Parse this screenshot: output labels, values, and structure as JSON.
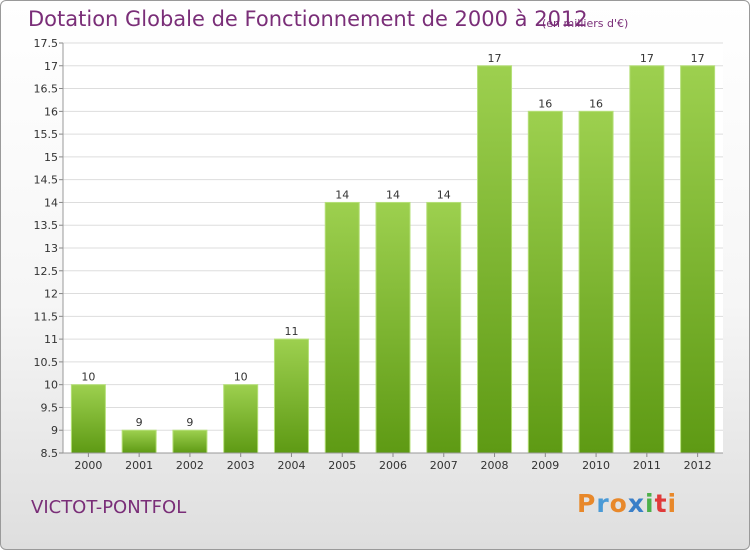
{
  "header": {
    "title": "Dotation Globale de Fonctionnement de 2000 à 2012",
    "unit": "(en milliers d'€)"
  },
  "footer": {
    "place": "VICTOT-PONTFOL",
    "logo_text": "Proxiti",
    "logo_colors": [
      "#e8882a",
      "#4a9ad6",
      "#e8882a",
      "#3a7fc8",
      "#4db04a",
      "#e03a3a",
      "#e8882a"
    ]
  },
  "chart_data": {
    "type": "bar",
    "categories": [
      "2000",
      "2001",
      "2002",
      "2003",
      "2004",
      "2005",
      "2006",
      "2007",
      "2008",
      "2009",
      "2010",
      "2011",
      "2012"
    ],
    "values": [
      10,
      9,
      9,
      10,
      11,
      14,
      14,
      14,
      17,
      16,
      16,
      17,
      17
    ],
    "data_labels": [
      "10",
      "9",
      "9",
      "10",
      "11",
      "14",
      "14",
      "14",
      "17",
      "16",
      "16",
      "17",
      "17"
    ],
    "y_ticks": [
      "8.5",
      "9",
      "9.5",
      "10",
      "10.5",
      "11",
      "11.5",
      "12",
      "12.5",
      "13",
      "13.5",
      "14",
      "14.5",
      "15",
      "15.5",
      "16",
      "16.5",
      "17",
      "17.5"
    ],
    "ylim": [
      8.5,
      17.5
    ],
    "grid": true,
    "bar_color_top": "#9dd04f",
    "bar_color_bottom": "#5e9a14",
    "grid_color": "#dddddd"
  }
}
